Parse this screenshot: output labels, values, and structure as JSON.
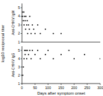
{
  "chart_data": [
    {
      "type": "scatter",
      "title": "Anti-CHIKV IgM",
      "ylabel": "log10 reciprocal titer",
      "x": [
        2,
        3,
        5,
        7,
        8,
        10,
        12,
        14,
        15,
        18,
        20,
        22,
        25,
        28,
        30,
        35,
        40,
        45,
        50,
        60,
        70,
        90,
        120,
        150
      ],
      "values": [
        4.5,
        4,
        3.5,
        4.5,
        3,
        4,
        3.5,
        2.5,
        4,
        3,
        3.5,
        2,
        3,
        2.5,
        4,
        2,
        3,
        2.5,
        2,
        3,
        2,
        2.5,
        2,
        2
      ],
      "xlim": [
        0,
        300
      ],
      "ylim": [
        1,
        5.5
      ],
      "yticks": [
        1,
        2,
        3,
        4,
        5
      ],
      "tick_labels": "y",
      "color": "#000000",
      "marker": "square"
    },
    {
      "type": "scatter",
      "title": "Anti-CHIKV IgG",
      "xlabel": "Days after symptom onset",
      "x": [
        3,
        5,
        8,
        10,
        12,
        15,
        18,
        20,
        25,
        30,
        35,
        40,
        50,
        60,
        70,
        90,
        100,
        120,
        150,
        180,
        200,
        240,
        300
      ],
      "values": [
        2,
        3,
        4,
        5,
        4.5,
        5,
        4,
        5,
        4.5,
        5,
        4,
        5,
        4.5,
        5,
        4,
        4.5,
        5,
        4,
        4.5,
        5,
        4,
        4.5,
        4
      ],
      "xlim": [
        0,
        300
      ],
      "xticks": [
        0,
        50,
        100,
        150,
        200,
        250,
        300
      ],
      "ylim": [
        1,
        5.5
      ],
      "yticks": [
        1,
        2,
        3,
        4,
        5
      ],
      "color": "#000000",
      "marker": "square"
    }
  ]
}
